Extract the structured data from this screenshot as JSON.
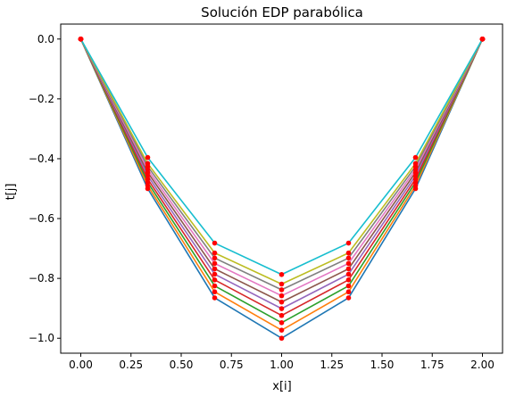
{
  "chart_data": {
    "type": "line",
    "title": "Solución EDP parabólica",
    "xlabel": "x[i]",
    "ylabel": "t[j]",
    "xlim": [
      -0.1,
      2.1
    ],
    "ylim": [
      -1.05,
      0.05
    ],
    "xticks": [
      0.0,
      0.25,
      0.5,
      0.75,
      1.0,
      1.25,
      1.5,
      1.75,
      2.0
    ],
    "xtick_labels": [
      "0.00",
      "0.25",
      "0.50",
      "0.75",
      "1.00",
      "1.25",
      "1.50",
      "1.75",
      "2.00"
    ],
    "yticks": [
      0.0,
      -0.2,
      -0.4,
      -0.6,
      -0.8,
      -1.0
    ],
    "ytick_labels": [
      "0.0",
      "−0.2",
      "−0.4",
      "−0.6",
      "−0.8",
      "−1.0"
    ],
    "grid": false,
    "legend": false,
    "marker_color": "#ff0000",
    "x": [
      0.0,
      0.3333,
      0.6667,
      1.0,
      1.3333,
      1.6667,
      2.0
    ],
    "series": [
      {
        "color": "#1f77b4",
        "values": [
          0.0,
          -0.5,
          -0.865,
          -1.0,
          -0.865,
          -0.5,
          0.0
        ]
      },
      {
        "color": "#ff7f0e",
        "values": [
          0.0,
          -0.49,
          -0.845,
          -0.973,
          -0.845,
          -0.49,
          0.0
        ]
      },
      {
        "color": "#2ca02c",
        "values": [
          0.0,
          -0.479,
          -0.825,
          -0.948,
          -0.825,
          -0.479,
          0.0
        ]
      },
      {
        "color": "#d62728",
        "values": [
          0.0,
          -0.468,
          -0.805,
          -0.924,
          -0.805,
          -0.468,
          0.0
        ]
      },
      {
        "color": "#9467bd",
        "values": [
          0.0,
          -0.457,
          -0.786,
          -0.901,
          -0.786,
          -0.457,
          0.0
        ]
      },
      {
        "color": "#8c564b",
        "values": [
          0.0,
          -0.446,
          -0.768,
          -0.879,
          -0.768,
          -0.446,
          0.0
        ]
      },
      {
        "color": "#e377c2",
        "values": [
          0.0,
          -0.436,
          -0.75,
          -0.858,
          -0.75,
          -0.436,
          0.0
        ]
      },
      {
        "color": "#7f7f7f",
        "values": [
          0.0,
          -0.426,
          -0.732,
          -0.838,
          -0.732,
          -0.426,
          0.0
        ]
      },
      {
        "color": "#bcbd22",
        "values": [
          0.0,
          -0.416,
          -0.715,
          -0.819,
          -0.715,
          -0.416,
          0.0
        ]
      },
      {
        "color": "#17becf",
        "values": [
          0.0,
          -0.396,
          -0.682,
          -0.787,
          -0.682,
          -0.396,
          0.0
        ]
      }
    ]
  }
}
